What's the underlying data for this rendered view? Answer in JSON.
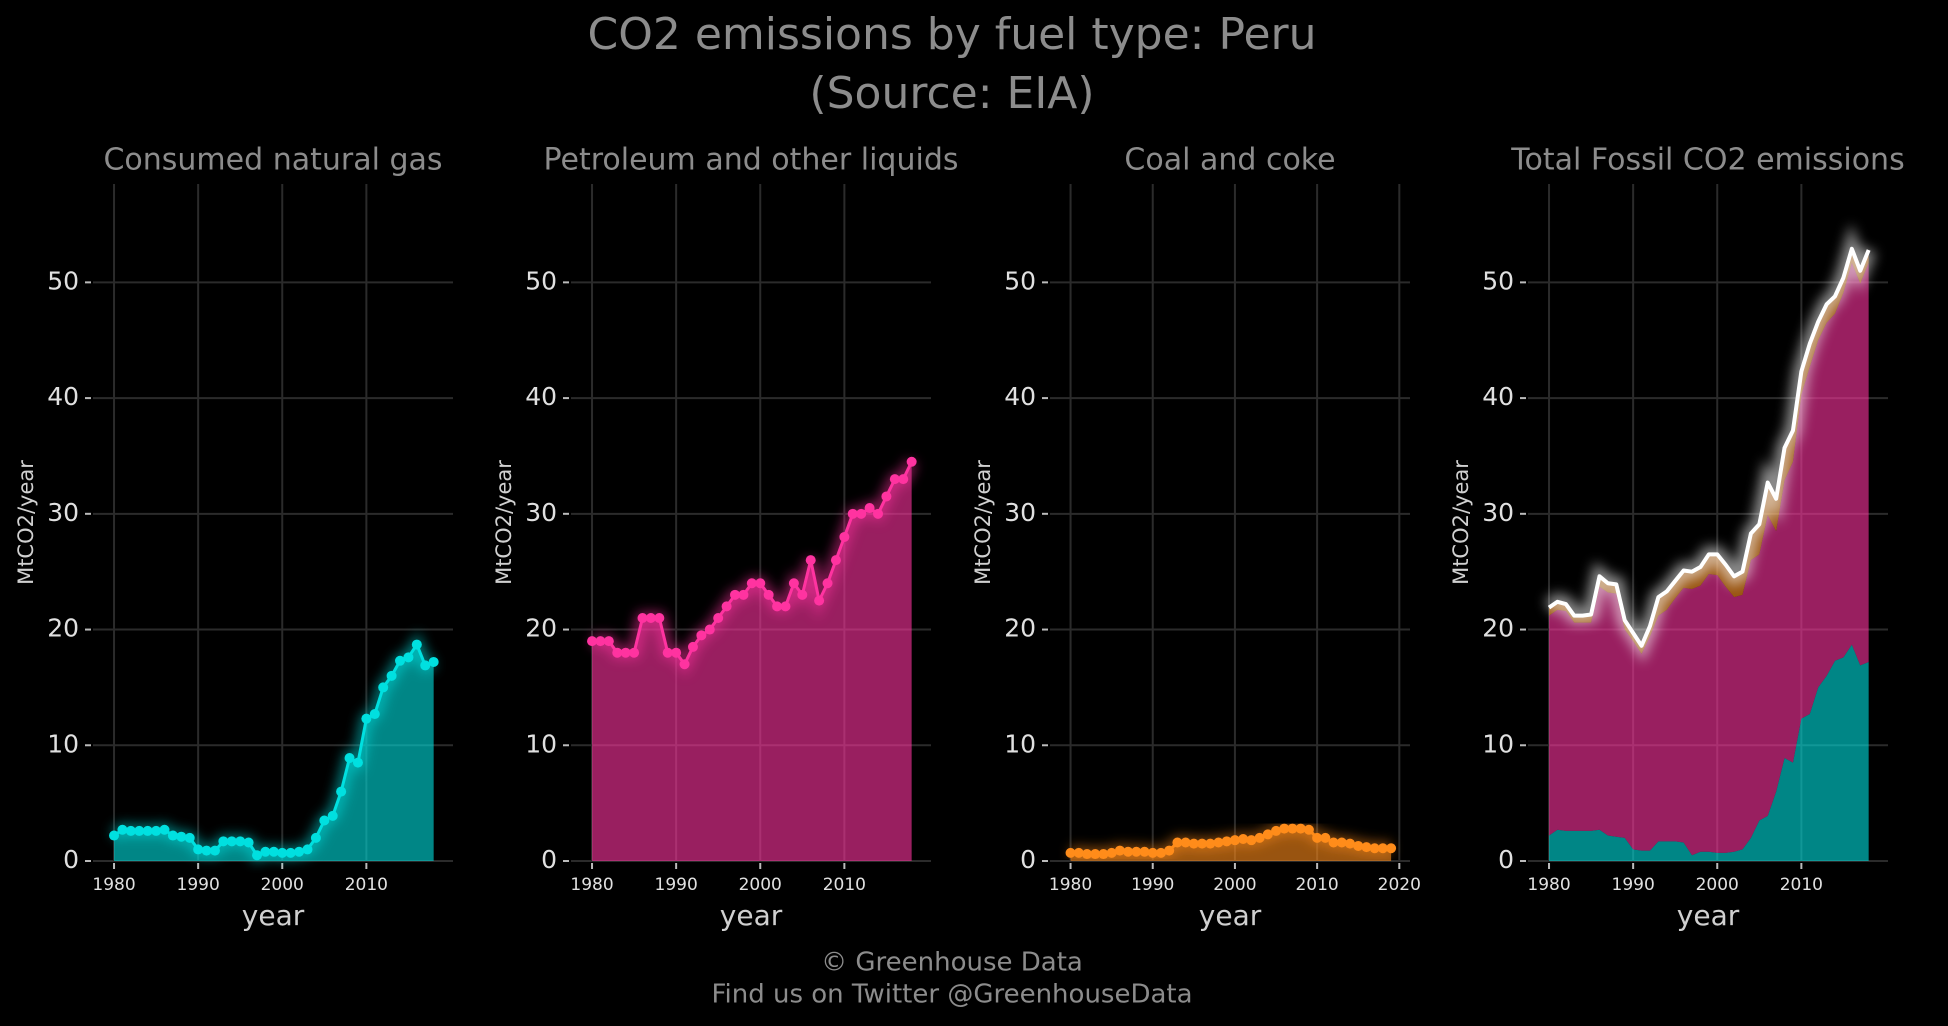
{
  "title": "CO2 emissions by fuel type: Peru",
  "subtitle": "(Source: EIA)",
  "footer": [
    "© Greenhouse Data",
    "Find us on Twitter @GreenhouseData"
  ],
  "chart_data": [
    {
      "type": "area",
      "title": "Consumed natural gas",
      "x_label": "year",
      "y_label": "MtCO2/year",
      "color": "#00e0e0",
      "x": [
        1980,
        1981,
        1982,
        1983,
        1984,
        1985,
        1986,
        1987,
        1988,
        1989,
        1990,
        1991,
        1992,
        1993,
        1994,
        1995,
        1996,
        1997,
        1998,
        1999,
        2000,
        2001,
        2002,
        2003,
        2004,
        2005,
        2006,
        2007,
        2008,
        2009,
        2010,
        2011,
        2012,
        2013,
        2014,
        2015,
        2016,
        2017,
        2018
      ],
      "values": [
        2.2,
        2.7,
        2.6,
        2.6,
        2.6,
        2.6,
        2.7,
        2.2,
        2.1,
        2.0,
        1.0,
        0.9,
        0.9,
        1.7,
        1.7,
        1.7,
        1.6,
        0.5,
        0.8,
        0.8,
        0.7,
        0.7,
        0.8,
        1.0,
        2.0,
        3.5,
        3.9,
        6.0,
        8.9,
        8.5,
        12.3,
        12.7,
        15.0,
        16.0,
        17.3,
        17.6,
        18.7,
        16.9,
        17.2
      ],
      "xlim": [
        1977.5,
        2020.3
      ],
      "ylim": [
        0,
        58.5
      ],
      "xticks": [
        1980,
        1990,
        2000,
        2010
      ],
      "yticks": [
        0,
        10,
        20,
        30,
        40,
        50
      ],
      "grid": true
    },
    {
      "type": "area",
      "title": "Petroleum and other liquids",
      "x_label": "year",
      "y_label": "MtCO2/year",
      "color": "#ff33a0",
      "x": [
        1980,
        1981,
        1982,
        1983,
        1984,
        1985,
        1986,
        1987,
        1988,
        1989,
        1990,
        1991,
        1992,
        1993,
        1994,
        1995,
        1996,
        1997,
        1998,
        1999,
        2000,
        2001,
        2002,
        2003,
        2004,
        2005,
        2006,
        2007,
        2008,
        2009,
        2010,
        2011,
        2012,
        2013,
        2014,
        2015,
        2016,
        2017,
        2018
      ],
      "values": [
        19,
        19,
        19,
        18,
        18,
        18,
        21,
        21,
        21,
        18,
        18,
        17,
        18.5,
        19.5,
        20,
        21,
        22,
        23,
        23,
        24,
        24,
        23,
        22,
        22,
        24,
        23,
        26,
        22.5,
        24,
        26,
        28,
        30,
        30,
        30.5,
        30,
        31.5,
        33,
        33,
        34.5
      ],
      "xlim": [
        1977.5,
        2020.3
      ],
      "ylim": [
        0,
        58.5
      ],
      "xticks": [
        1980,
        1990,
        2000,
        2010
      ],
      "yticks": [
        0,
        10,
        20,
        30,
        40,
        50
      ],
      "grid": true
    },
    {
      "type": "area",
      "title": "Coal and coke",
      "x_label": "year",
      "y_label": "MtCO2/year",
      "color": "#ff8c1a",
      "x": [
        1980,
        1981,
        1982,
        1983,
        1984,
        1985,
        1986,
        1987,
        1988,
        1989,
        1990,
        1991,
        1992,
        1993,
        1994,
        1995,
        1996,
        1997,
        1998,
        1999,
        2000,
        2001,
        2002,
        2003,
        2004,
        2005,
        2006,
        2007,
        2008,
        2009,
        2010,
        2011,
        2012,
        2013,
        2014,
        2015,
        2016,
        2017,
        2018,
        2019
      ],
      "values": [
        0.7,
        0.7,
        0.6,
        0.6,
        0.6,
        0.7,
        0.9,
        0.8,
        0.8,
        0.8,
        0.7,
        0.7,
        0.9,
        1.6,
        1.6,
        1.5,
        1.5,
        1.5,
        1.6,
        1.7,
        1.8,
        1.9,
        1.8,
        2.0,
        2.3,
        2.6,
        2.8,
        2.8,
        2.8,
        2.7,
        2.0,
        2.0,
        1.6,
        1.6,
        1.5,
        1.3,
        1.2,
        1.1,
        1.1,
        1.1
      ],
      "xlim": [
        1977.5,
        2021.3
      ],
      "ylim": [
        0,
        58.5
      ],
      "xticks": [
        1980,
        1990,
        2000,
        2010,
        2020
      ],
      "yticks": [
        0,
        10,
        20,
        30,
        40,
        50
      ],
      "grid": true
    },
    {
      "type": "stacked_total",
      "title": "Total Fossil CO2 emissions",
      "x_label": "year",
      "y_label": "MtCO2/year",
      "color": "#ffffff",
      "x": [
        1980,
        1981,
        1982,
        1983,
        1984,
        1985,
        1986,
        1987,
        1988,
        1989,
        1990,
        1991,
        1992,
        1993,
        1994,
        1995,
        1996,
        1997,
        1998,
        1999,
        2000,
        2001,
        2002,
        2003,
        2004,
        2005,
        2006,
        2007,
        2008,
        2009,
        2010,
        2011,
        2012,
        2013,
        2014,
        2015,
        2016,
        2017,
        2018
      ],
      "values": [
        21.9,
        22.4,
        22.2,
        21.2,
        21.2,
        21.3,
        24.6,
        24.0,
        23.9,
        20.8,
        19.7,
        18.6,
        20.3,
        22.8,
        23.3,
        24.2,
        25.1,
        25.0,
        25.4,
        26.5,
        26.5,
        25.6,
        24.6,
        25.0,
        28.3,
        29.1,
        32.7,
        31.3,
        35.7,
        37.2,
        42.3,
        44.7,
        46.6,
        48.1,
        48.8,
        50.4,
        52.9,
        51.0,
        52.8
      ],
      "xlim": [
        1977.5,
        2020.3
      ],
      "ylim": [
        0,
        58.5
      ],
      "xticks": [
        1980,
        1990,
        2000,
        2010
      ],
      "yticks": [
        0,
        10,
        20,
        30,
        40,
        50
      ],
      "grid": true
    }
  ]
}
